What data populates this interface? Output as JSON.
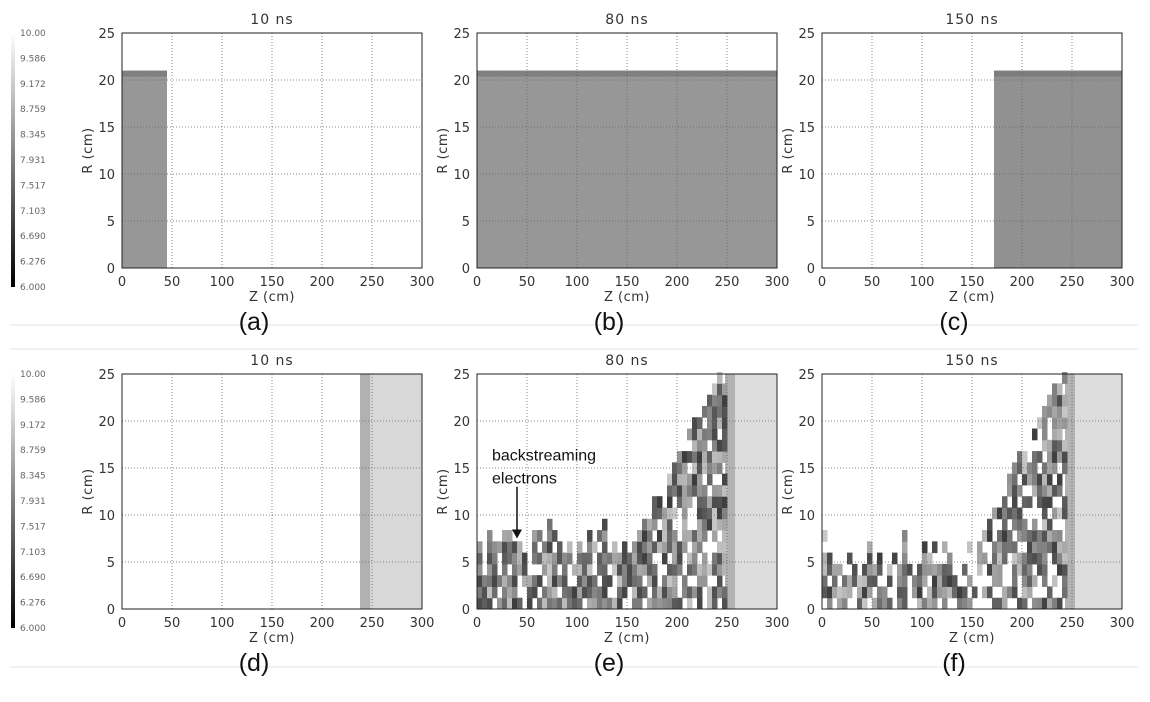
{
  "colorbar": {
    "ticks": [
      "10.00",
      "9.586",
      "9.172",
      "8.759",
      "8.345",
      "7.931",
      "7.517",
      "7.103",
      "6.690",
      "6.276",
      "6.000"
    ],
    "min": 6.0,
    "max": 10.0
  },
  "colors": {
    "fill_mid": "#a3a3a3",
    "fill_light": "#e2e2e2",
    "edge_dark": "#6e6e6e",
    "grid": "#666666"
  },
  "chart_data": [
    {
      "type": "heatmap",
      "panel_label": "(a)",
      "title": "10 ns",
      "xlabel": "Z (cm)",
      "ylabel": "R (cm)",
      "xticks": [
        "0",
        "50",
        "100",
        "150",
        "200",
        "250",
        "300"
      ],
      "yticks": [
        "0",
        "5",
        "10",
        "15",
        "20",
        "25"
      ],
      "xlim": [
        0,
        300
      ],
      "ylim": [
        0,
        25
      ],
      "grid": true,
      "regions": [
        {
          "z": [
            0,
            45
          ],
          "r": [
            0,
            21
          ],
          "level": 8.4
        }
      ]
    },
    {
      "type": "heatmap",
      "panel_label": "(b)",
      "title": "80 ns",
      "xlabel": "Z (cm)",
      "ylabel": "R (cm)",
      "xticks": [
        "0",
        "50",
        "100",
        "150",
        "200",
        "250",
        "300"
      ],
      "yticks": [
        "0",
        "5",
        "10",
        "15",
        "20",
        "25"
      ],
      "xlim": [
        0,
        300
      ],
      "ylim": [
        0,
        25
      ],
      "grid": true,
      "regions": [
        {
          "z": [
            0,
            300
          ],
          "r": [
            0,
            21
          ],
          "level": 8.4
        }
      ]
    },
    {
      "type": "heatmap",
      "panel_label": "(c)",
      "title": "150 ns",
      "xlabel": "Z (cm)",
      "ylabel": "R (cm)",
      "xticks": [
        "0",
        "50",
        "100",
        "150",
        "200",
        "250",
        "300"
      ],
      "yticks": [
        "0",
        "5",
        "10",
        "15",
        "20",
        "25"
      ],
      "xlim": [
        0,
        300
      ],
      "ylim": [
        0,
        25
      ],
      "grid": true,
      "regions": [
        {
          "z": [
            172,
            300
          ],
          "r": [
            0,
            21
          ],
          "level": 8.3
        }
      ]
    },
    {
      "type": "heatmap",
      "panel_label": "(d)",
      "title": "10 ns",
      "xlabel": "Z (cm)",
      "ylabel": "R (cm)",
      "xticks": [
        "0",
        "50",
        "100",
        "150",
        "200",
        "250",
        "300"
      ],
      "yticks": [
        "0",
        "5",
        "10",
        "15",
        "20",
        "25"
      ],
      "xlim": [
        0,
        300
      ],
      "ylim": [
        0,
        25
      ],
      "grid": true,
      "regions": [
        {
          "z": [
            238,
            300
          ],
          "r": [
            0,
            25
          ],
          "level": 9.5
        }
      ]
    },
    {
      "type": "heatmap",
      "panel_label": "(e)",
      "title": "80 ns",
      "xlabel": "Z (cm)",
      "ylabel": "R (cm)",
      "xticks": [
        "0",
        "50",
        "100",
        "150",
        "200",
        "250",
        "300"
      ],
      "yticks": [
        "0",
        "5",
        "10",
        "15",
        "20",
        "25"
      ],
      "xlim": [
        0,
        300
      ],
      "ylim": [
        0,
        25
      ],
      "grid": true,
      "regions": [
        {
          "z": [
            248,
            300
          ],
          "r": [
            0,
            25
          ],
          "level": 9.6
        }
      ],
      "annotation": {
        "text_lines": [
          "backstreaming",
          "electrons"
        ],
        "arrow_to": [
          40,
          7.5
        ]
      }
    },
    {
      "type": "heatmap",
      "panel_label": "(f)",
      "title": "150 ns",
      "xlabel": "Z (cm)",
      "ylabel": "R (cm)",
      "xticks": [
        "0",
        "50",
        "100",
        "150",
        "200",
        "250",
        "300"
      ],
      "yticks": [
        "0",
        "5",
        "10",
        "15",
        "20",
        "25"
      ],
      "xlim": [
        0,
        300
      ],
      "ylim": [
        0,
        25
      ],
      "grid": true,
      "regions": [
        {
          "z": [
            243,
            300
          ],
          "r": [
            0,
            25
          ],
          "level": 9.6
        }
      ]
    }
  ]
}
